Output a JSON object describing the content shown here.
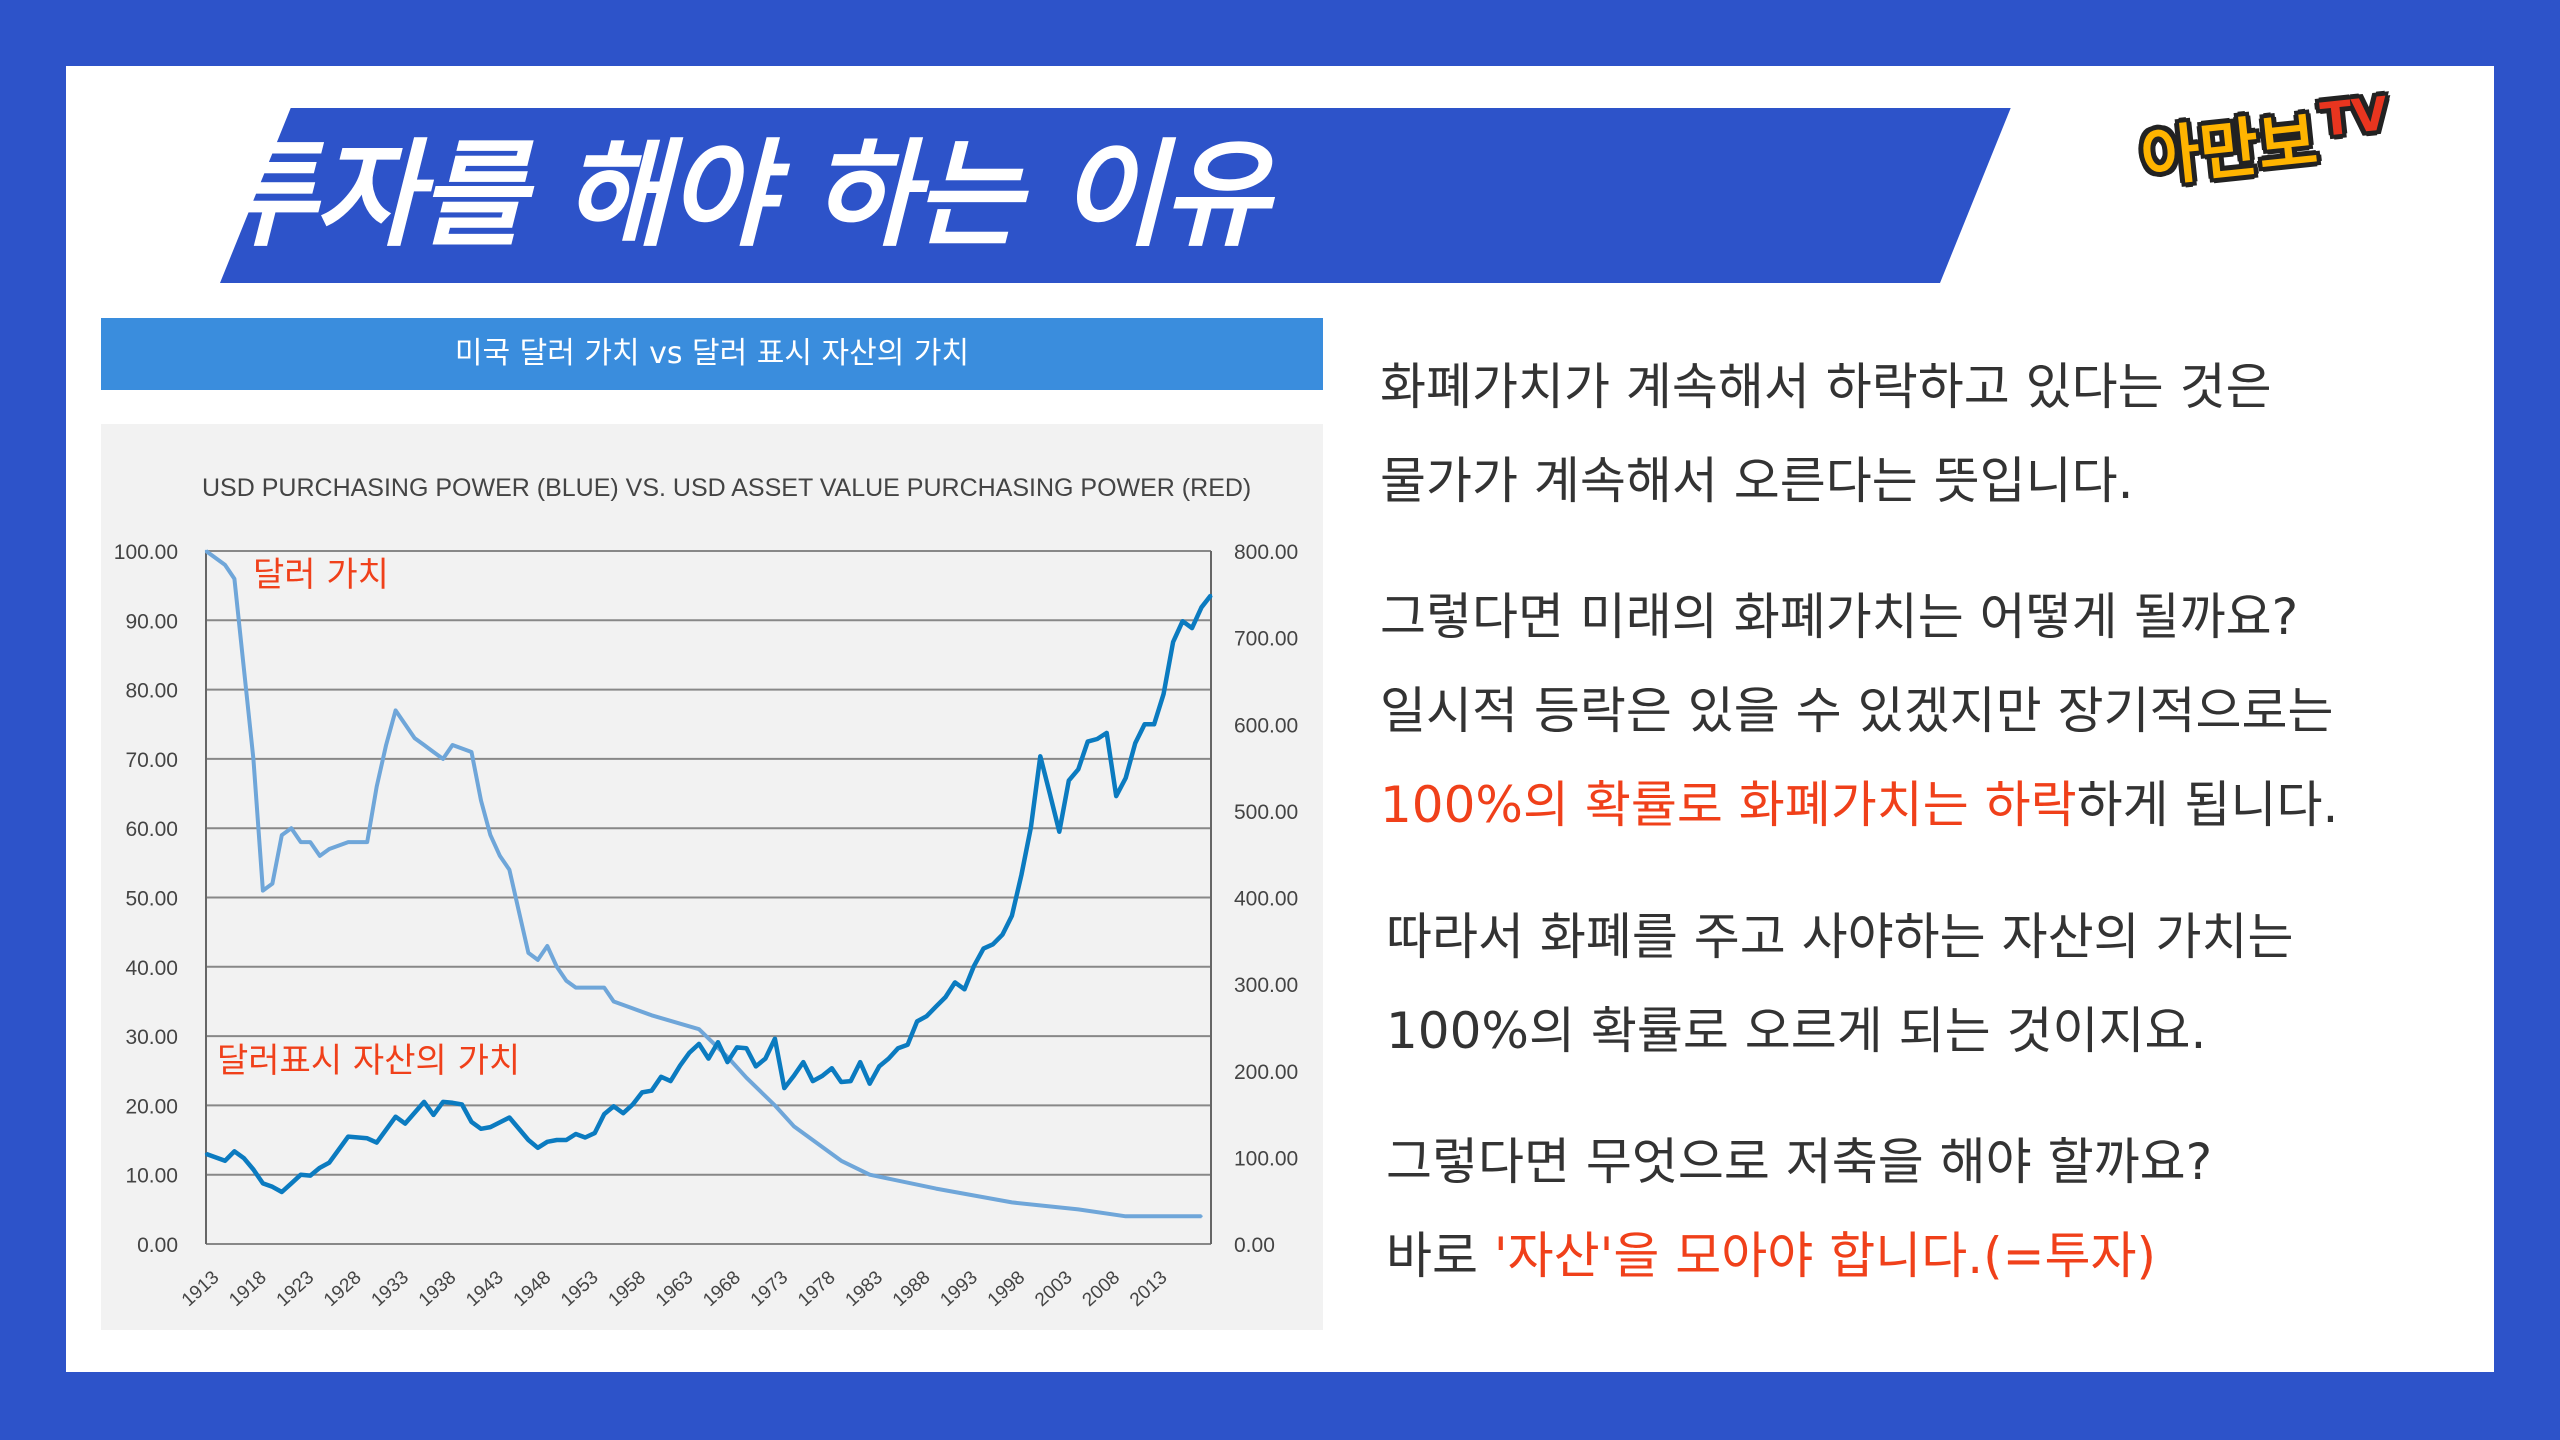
{
  "slide": {
    "title": "투자를 해야 하는 이유",
    "logo_main": "아만보",
    "logo_tv": "TV",
    "chart_header": "미국 달러 가치 vs 달러 표시 자산의 가치"
  },
  "paragraphs": [
    {
      "lines": [
        [
          {
            "t": "화폐가치가 계속해서 하락하고 있다는 것은",
            "red": false
          }
        ],
        [
          {
            "t": "물가가 계속해서 오른다는 뜻입니다.",
            "red": false
          }
        ]
      ]
    },
    {
      "lines": [
        [
          {
            "t": "그렇다면 미래의 화폐가치는 어떻게 될까요?",
            "red": false
          }
        ],
        [
          {
            "t": "일시적 등락은 있을 수 있겠지만 장기적으로는",
            "red": false
          }
        ],
        [
          {
            "t": "100%의 확률로 화폐가치는 하락",
            "red": true
          },
          {
            "t": "하게 됩니다.",
            "red": false
          }
        ]
      ]
    },
    {
      "lines": [
        [
          {
            "t": "따라서 화폐를 주고 사야하는 자산의 가치는",
            "red": false
          }
        ],
        [
          {
            "t": "100%의 확률로 오르게 되는 것이지요.",
            "red": false
          }
        ]
      ]
    },
    {
      "lines": [
        [
          {
            "t": "그렇다면 무엇으로 저축을 해야 할까요?",
            "red": false
          }
        ],
        [
          {
            "t": "바로 ",
            "red": false
          },
          {
            "t": "'자산'",
            "red": true
          },
          {
            "t": "을 모아야 합니다.(=투자)",
            "red": true
          }
        ]
      ]
    }
  ],
  "colors": {
    "background": "#2d53c9",
    "header_bar": "#3a8ddd",
    "blue_line": "#6fa6d9",
    "dark_line": "#0b7bc0",
    "accent_red": "#f0401a"
  },
  "chart_data": {
    "type": "line",
    "title": "USD PURCHASING POWER (BLUE) VS. USD ASSET VALUE PURCHASING POWER (RED)",
    "x_tick_labels": [
      "1913",
      "1918",
      "1923",
      "1928",
      "1933",
      "1938",
      "1943",
      "1948",
      "1953",
      "1958",
      "1963",
      "1968",
      "1973",
      "1978",
      "1983",
      "1988",
      "1993",
      "1998",
      "2003",
      "2008",
      "2013"
    ],
    "xlim": [
      1913,
      2019
    ],
    "y_left": {
      "ylim": [
        0,
        100
      ],
      "tick_labels": [
        "100.00",
        "90.00",
        "80.00",
        "70.00",
        "60.00",
        "50.00",
        "40.00",
        "30.00",
        "20.00",
        "10.00",
        "0.00"
      ]
    },
    "y_right": {
      "ylim": [
        0,
        800
      ],
      "tick_labels": [
        "800.00",
        "700.00",
        "600.00",
        "500.00",
        "400.00",
        "300.00",
        "200.00",
        "100.00",
        "0.00"
      ]
    },
    "grid": true,
    "annotations": [
      {
        "text": "달러 가치",
        "color": "#f0401a"
      },
      {
        "text": "달러표시 자산의 가치",
        "color": "#f0401a"
      }
    ],
    "series": [
      {
        "name": "달러 가치",
        "axis": "left",
        "color": "#6fa6d9",
        "x": [
          1913,
          1915,
          1916,
          1917,
          1918,
          1919,
          1920,
          1921,
          1922,
          1923,
          1924,
          1925,
          1926,
          1928,
          1930,
          1931,
          1932,
          1933,
          1935,
          1936,
          1937,
          1938,
          1939,
          1941,
          1942,
          1943,
          1944,
          1945,
          1946,
          1947,
          1948,
          1949,
          1950,
          1951,
          1952,
          1953,
          1954,
          1955,
          1956,
          1958,
          1960,
          1965,
          1968,
          1970,
          1973,
          1975,
          1978,
          1980,
          1983,
          1990,
          1998,
          2005,
          2010,
          2018
        ],
        "values": [
          100,
          98,
          96,
          83,
          70,
          51,
          52,
          59,
          60,
          58,
          58,
          56,
          57,
          58,
          58,
          66,
          72,
          77,
          73,
          72,
          71,
          70,
          72,
          71,
          64,
          59,
          56,
          54,
          48,
          42,
          41,
          43,
          40,
          38,
          37,
          37,
          37,
          37,
          35,
          34,
          33,
          31,
          27,
          24,
          20,
          17,
          14,
          12,
          10,
          8,
          6,
          5,
          4,
          4
        ]
      },
      {
        "name": "달러표시 자산의 가치",
        "axis": "right",
        "color": "#0b7bc0",
        "x": [
          1913,
          1915,
          1916,
          1917,
          1918,
          1919,
          1920,
          1921,
          1922,
          1923,
          1924,
          1925,
          1926,
          1928,
          1930,
          1931,
          1933,
          1934,
          1936,
          1937,
          1938,
          1939,
          1940,
          1941,
          1942,
          1943,
          1945,
          1947,
          1948,
          1949,
          1950,
          1951,
          1952,
          1953,
          1954,
          1955,
          1956,
          1957,
          1958,
          1959,
          1960,
          1961,
          1962,
          1963,
          1964,
          1965,
          1966,
          1967,
          1968,
          1969,
          1970,
          1971,
          1972,
          1973,
          1974,
          1975,
          1976,
          1977,
          1978,
          1979,
          1980,
          1981,
          1982,
          1983,
          1984,
          1985,
          1986,
          1987,
          1988,
          1989,
          1990,
          1991,
          1992,
          1993,
          1994,
          1995,
          1996,
          1997,
          1998,
          1999,
          2000,
          2001,
          2002,
          2003,
          2004,
          2005,
          2006,
          2007,
          2008,
          2009,
          2010,
          2011,
          2012,
          2013,
          2014,
          2015,
          2016,
          2017,
          2018,
          2019
        ],
        "values": [
          104,
          96,
          107,
          99,
          86,
          70,
          66,
          60,
          70,
          80,
          79,
          88,
          94,
          124,
          122,
          117,
          147,
          139,
          164,
          149,
          164,
          163,
          161,
          141,
          133,
          135,
          146,
          120,
          111,
          118,
          120,
          120,
          127,
          123,
          128,
          150,
          159,
          151,
          161,
          175,
          177,
          193,
          188,
          206,
          221,
          231,
          214,
          233,
          210,
          227,
          226,
          205,
          214,
          237,
          180,
          194,
          210,
          188,
          194,
          203,
          187,
          188,
          210,
          185,
          205,
          214,
          226,
          230,
          257,
          263,
          274,
          285,
          302,
          294,
          321,
          341,
          346,
          357,
          379,
          426,
          481,
          563,
          520,
          476,
          535,
          548,
          580,
          583,
          590,
          517,
          538,
          578,
          600,
          600,
          635,
          695,
          719,
          711,
          735,
          749
        ]
      }
    ]
  }
}
